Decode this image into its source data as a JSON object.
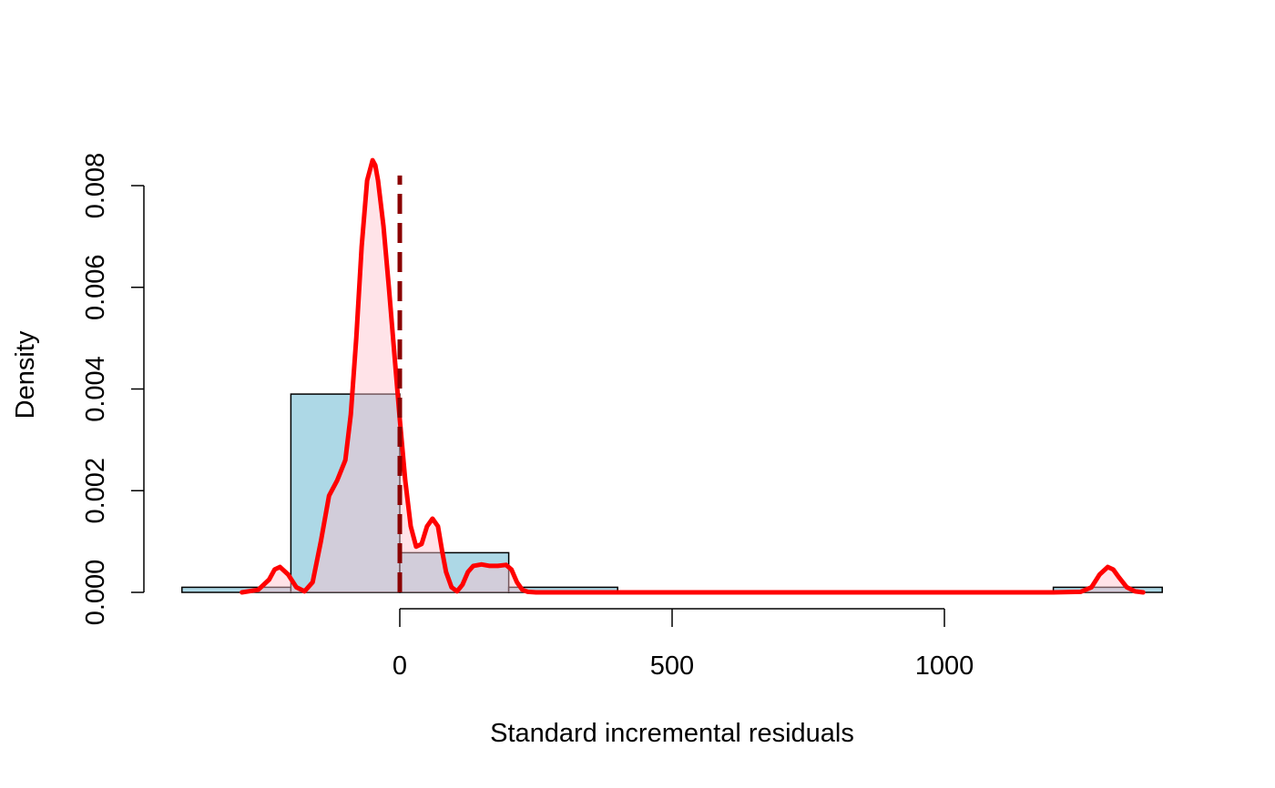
{
  "chart_data": {
    "type": "histogram",
    "title": "",
    "xlabel": "Standard incremental residuals",
    "ylabel": "Density",
    "x_axis": {
      "range": [
        -400,
        1400
      ],
      "ticks": [
        0,
        500,
        1000
      ],
      "tick_labels": [
        "0",
        "500",
        "1000"
      ],
      "axis_span": [
        0,
        1000
      ]
    },
    "y_axis": {
      "range": [
        0,
        0.0085
      ],
      "ticks": [
        0,
        0.002,
        0.004,
        0.006,
        0.008
      ],
      "tick_labels": [
        "0.000",
        "0.002",
        "0.004",
        "0.006",
        "0.008"
      ]
    },
    "histogram": {
      "bins": [
        {
          "from": -400,
          "to": -200,
          "density": 0.0001
        },
        {
          "from": -200,
          "to": 0,
          "density": 0.0039
        },
        {
          "from": 0,
          "to": 200,
          "density": 0.00078
        },
        {
          "from": 200,
          "to": 400,
          "density": 0.0001
        },
        {
          "from": 1200,
          "to": 1400,
          "density": 0.0001
        }
      ],
      "fill_color": "#add8e6",
      "border_color": "#000000"
    },
    "density_curve": {
      "color": "#ff0000",
      "fill_color": "#ffc0cb",
      "fill_opacity": 0.45,
      "x": [
        -290,
        -260,
        -240,
        -230,
        -220,
        -205,
        -190,
        -175,
        -160,
        -145,
        -130,
        -115,
        -100,
        -90,
        -80,
        -70,
        -60,
        -50,
        -45,
        -40,
        -30,
        -20,
        -10,
        0,
        10,
        20,
        30,
        40,
        50,
        60,
        70,
        78,
        85,
        95,
        105,
        115,
        125,
        135,
        150,
        165,
        180,
        195,
        205,
        215,
        225,
        235,
        250,
        270,
        300,
        400,
        600,
        800,
        1000,
        1200,
        1250,
        1270,
        1285,
        1300,
        1310,
        1320,
        1335,
        1350,
        1365
      ],
      "y": [
        0,
        5e-05,
        0.00025,
        0.00045,
        0.0005,
        0.00035,
        0.0001,
        2e-05,
        0.0002,
        0.001,
        0.0019,
        0.0022,
        0.0026,
        0.0035,
        0.005,
        0.0068,
        0.0081,
        0.0085,
        0.0084,
        0.0081,
        0.0072,
        0.006,
        0.0047,
        0.0034,
        0.0022,
        0.0013,
        0.0009,
        0.00095,
        0.0013,
        0.00145,
        0.0013,
        0.0008,
        0.0004,
        0.0001,
        2e-05,
        0.00015,
        0.0004,
        0.00052,
        0.00055,
        0.00052,
        0.00052,
        0.00054,
        0.00045,
        0.0002,
        5e-05,
        1e-05,
        0.0,
        0.0,
        0.0,
        0.0,
        0.0,
        0.0,
        0.0,
        0.0,
        1e-05,
        0.0001,
        0.00035,
        0.0005,
        0.00045,
        0.0003,
        0.0001,
        2e-05,
        0.0
      ]
    },
    "reference_line": {
      "x": 0,
      "style": "dashed",
      "color": "#8b0000"
    }
  }
}
